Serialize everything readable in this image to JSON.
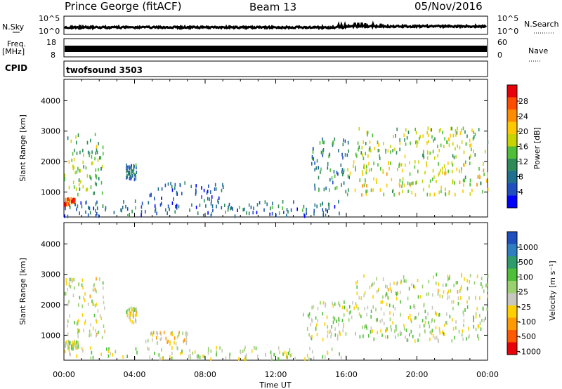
{
  "header": {
    "station": "Prince George (fitACF)",
    "beam": "Beam 13",
    "date": "05/Nov/2016"
  },
  "top_panels": {
    "nsky_label": "N.Sky",
    "nsky_ticks": [
      "10^5",
      "10^0"
    ],
    "nsearch_label": "N.Search",
    "nsearch_ticks": [
      "10^5",
      "10^0"
    ],
    "freq_label": "Freq.",
    "freq_unit": "[MHz]",
    "freq_ticks": [
      "18",
      "8"
    ],
    "nave_label": "Nave",
    "nave_ticks": [
      "60",
      "0"
    ],
    "cpid_label": "CPID",
    "cpid_value": "twofsound 3503"
  },
  "panels": {
    "ylabel": "Slant Range [km]",
    "xlabel": "Time UT",
    "y_ticks": [
      "4000",
      "3000",
      "2000",
      "1000"
    ],
    "x_ticks": [
      "00:00",
      "04:00",
      "08:00",
      "12:00",
      "16:00",
      "20:00",
      "00:00"
    ]
  },
  "power_colorbar": {
    "label": "Power [dB]",
    "ticks": [
      "28",
      "24",
      "20",
      "16",
      "12",
      "8",
      "4"
    ],
    "colors": [
      "#e8000b",
      "#ff4d00",
      "#ff8c00",
      "#ffc800",
      "#c8d400",
      "#4fbf3a",
      "#2e8b57",
      "#1f6f8f",
      "#1f4fbf",
      "#0000ff"
    ]
  },
  "velocity_colorbar": {
    "label": "Velocity [m s⁻¹]",
    "ticks": [
      "1000",
      "500",
      "100",
      "25",
      "-25",
      "-100",
      "-500",
      "-1000"
    ],
    "colors": [
      "#1f4fbf",
      "#2e7fbf",
      "#2e9b6b",
      "#4fbf3a",
      "#9ad070",
      "#c8c8c0",
      "#ffd000",
      "#ff9a00",
      "#ff5a00",
      "#e8000b"
    ]
  },
  "chart_data": [
    {
      "type": "heatmap",
      "title": "",
      "xlabel": "Time UT",
      "ylabel": "Slant Range [km]",
      "colorbar_label": "Power [dB]",
      "xlim": [
        "00:00",
        "24:00"
      ],
      "ylim": [
        180,
        4700
      ],
      "crange": [
        0,
        32
      ],
      "regions": [
        {
          "t0": 0.0,
          "t1": 2.2,
          "r0": 900,
          "r1": 2900,
          "value": 14
        },
        {
          "t0": 0.0,
          "t1": 0.6,
          "r0": 550,
          "r1": 800,
          "value": 26
        },
        {
          "t0": 3.5,
          "t1": 4.1,
          "r0": 1400,
          "r1": 1900,
          "value": 8
        },
        {
          "t0": 4.8,
          "t1": 9.0,
          "r0": 700,
          "r1": 1300,
          "value": 6
        },
        {
          "t0": 0.0,
          "t1": 16.0,
          "r0": 200,
          "r1": 700,
          "value": 8
        },
        {
          "t0": 14.0,
          "t1": 16.2,
          "r0": 1000,
          "r1": 2800,
          "value": 10
        },
        {
          "t0": 16.0,
          "t1": 24.0,
          "r0": 900,
          "r1": 2000,
          "value": 18
        },
        {
          "t0": 16.5,
          "t1": 24.0,
          "r0": 2100,
          "r1": 3100,
          "value": 16
        }
      ]
    },
    {
      "type": "heatmap",
      "title": "",
      "xlabel": "Time UT",
      "ylabel": "Slant Range [km]",
      "colorbar_label": "Velocity [m s⁻¹]",
      "xlim": [
        "00:00",
        "24:00"
      ],
      "ylim": [
        180,
        4700
      ],
      "crange": [
        -1000,
        1000
      ],
      "regions": [
        {
          "t0": 0.0,
          "t1": 2.3,
          "r0": 900,
          "r1": 2900,
          "value": -100
        },
        {
          "t0": 0.0,
          "t1": 0.8,
          "r0": 550,
          "r1": 800,
          "value": 0
        },
        {
          "t0": 3.5,
          "t1": 4.1,
          "r0": 1400,
          "r1": 1900,
          "value": -100
        },
        {
          "t0": 4.6,
          "t1": 7.0,
          "r0": 700,
          "r1": 1100,
          "value": -200
        },
        {
          "t0": 0.0,
          "t1": 16.0,
          "r0": 200,
          "r1": 600,
          "value": 0
        },
        {
          "t0": 13.5,
          "t1": 24.0,
          "r0": 800,
          "r1": 2100,
          "value": 0
        },
        {
          "t0": 16.5,
          "t1": 24.0,
          "r0": 2200,
          "r1": 3000,
          "value": -80
        }
      ]
    }
  ]
}
